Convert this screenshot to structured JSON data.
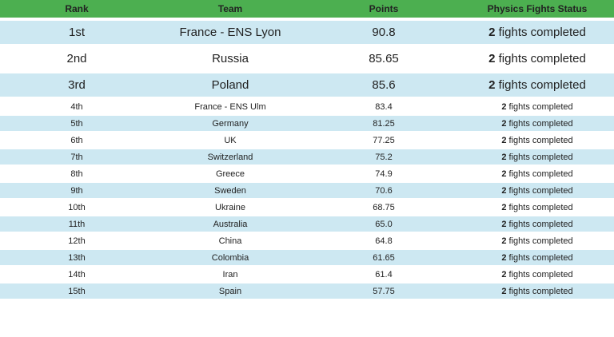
{
  "colors": {
    "header_bg": "#4caf50",
    "row_shaded_bg": "#cde8f2",
    "row_bg": "#ffffff"
  },
  "table": {
    "headers": [
      "Rank",
      "Team",
      "Points",
      "Physics Fights Status"
    ],
    "rows": [
      {
        "rank": "1st",
        "team": "France - ENS Lyon",
        "points": "90.8",
        "status_bold": "2",
        "status_text": "fights completed"
      },
      {
        "rank": "2nd",
        "team": "Russia",
        "points": "85.65",
        "status_bold": "2",
        "status_text": "fights completed"
      },
      {
        "rank": "3rd",
        "team": "Poland",
        "points": "85.6",
        "status_bold": "2",
        "status_text": "fights completed"
      },
      {
        "rank": "4th",
        "team": "France - ENS Ulm",
        "points": "83.4",
        "status_bold": "2",
        "status_text": "fights completed"
      },
      {
        "rank": "5th",
        "team": "Germany",
        "points": "81.25",
        "status_bold": "2",
        "status_text": "fights completed"
      },
      {
        "rank": "6th",
        "team": "UK",
        "points": "77.25",
        "status_bold": "2",
        "status_text": "fights completed"
      },
      {
        "rank": "7th",
        "team": "Switzerland",
        "points": "75.2",
        "status_bold": "2",
        "status_text": "fights completed"
      },
      {
        "rank": "8th",
        "team": "Greece",
        "points": "74.9",
        "status_bold": "2",
        "status_text": "fights completed"
      },
      {
        "rank": "9th",
        "team": "Sweden",
        "points": "70.6",
        "status_bold": "2",
        "status_text": "fights completed"
      },
      {
        "rank": "10th",
        "team": "Ukraine",
        "points": "68.75",
        "status_bold": "2",
        "status_text": "fights completed"
      },
      {
        "rank": "11th",
        "team": "Australia",
        "points": "65.0",
        "status_bold": "2",
        "status_text": "fights completed"
      },
      {
        "rank": "12th",
        "team": "China",
        "points": "64.8",
        "status_bold": "2",
        "status_text": "fights completed"
      },
      {
        "rank": "13th",
        "team": "Colombia",
        "points": "61.65",
        "status_bold": "2",
        "status_text": "fights completed"
      },
      {
        "rank": "14th",
        "team": "Iran",
        "points": "61.4",
        "status_bold": "2",
        "status_text": "fights completed"
      },
      {
        "rank": "15th",
        "team": "Spain",
        "points": "57.75",
        "status_bold": "2",
        "status_text": "fights completed"
      }
    ]
  }
}
